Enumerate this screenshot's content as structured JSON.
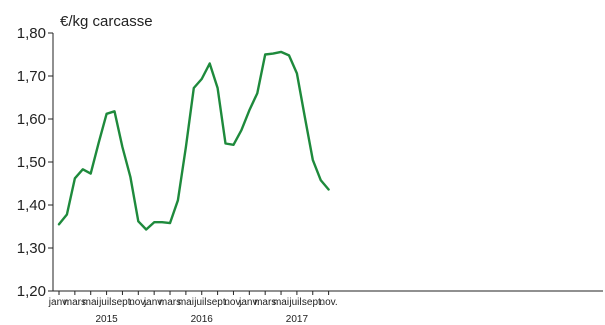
{
  "chart_data": {
    "type": "line",
    "title": "",
    "ylabel": "€/kg carcasse",
    "xlabel": "",
    "ylim": [
      1.2,
      1.8
    ],
    "yticks": [
      "1,20",
      "1,30",
      "1,40",
      "1,50",
      "1,60",
      "1,70",
      "1,80"
    ],
    "grid": false,
    "x_labels": [
      "janv.",
      "mars",
      "mai",
      "juil.",
      "sept.",
      "nov.",
      "janv.",
      "mars",
      "mai",
      "juil.",
      "sept.",
      "nov.",
      "janv.",
      "mars",
      "mai",
      "juil.",
      "sept.",
      "nov."
    ],
    "years": [
      "2015",
      "2016",
      "2017"
    ],
    "line_color": "#1e8a3c",
    "series": [
      {
        "values": [
          1.355,
          1.378,
          1.462,
          1.483,
          1.473,
          1.545,
          1.612,
          1.618,
          1.535,
          1.465,
          1.362,
          1.343,
          1.36,
          1.36,
          1.358,
          1.411,
          1.535,
          1.672,
          1.693,
          1.729,
          1.672,
          1.543,
          1.54,
          1.574,
          1.62,
          1.66,
          1.75,
          1.752,
          1.756,
          1.748,
          1.706,
          1.605,
          1.505,
          1.458,
          1.436
        ]
      }
    ]
  }
}
